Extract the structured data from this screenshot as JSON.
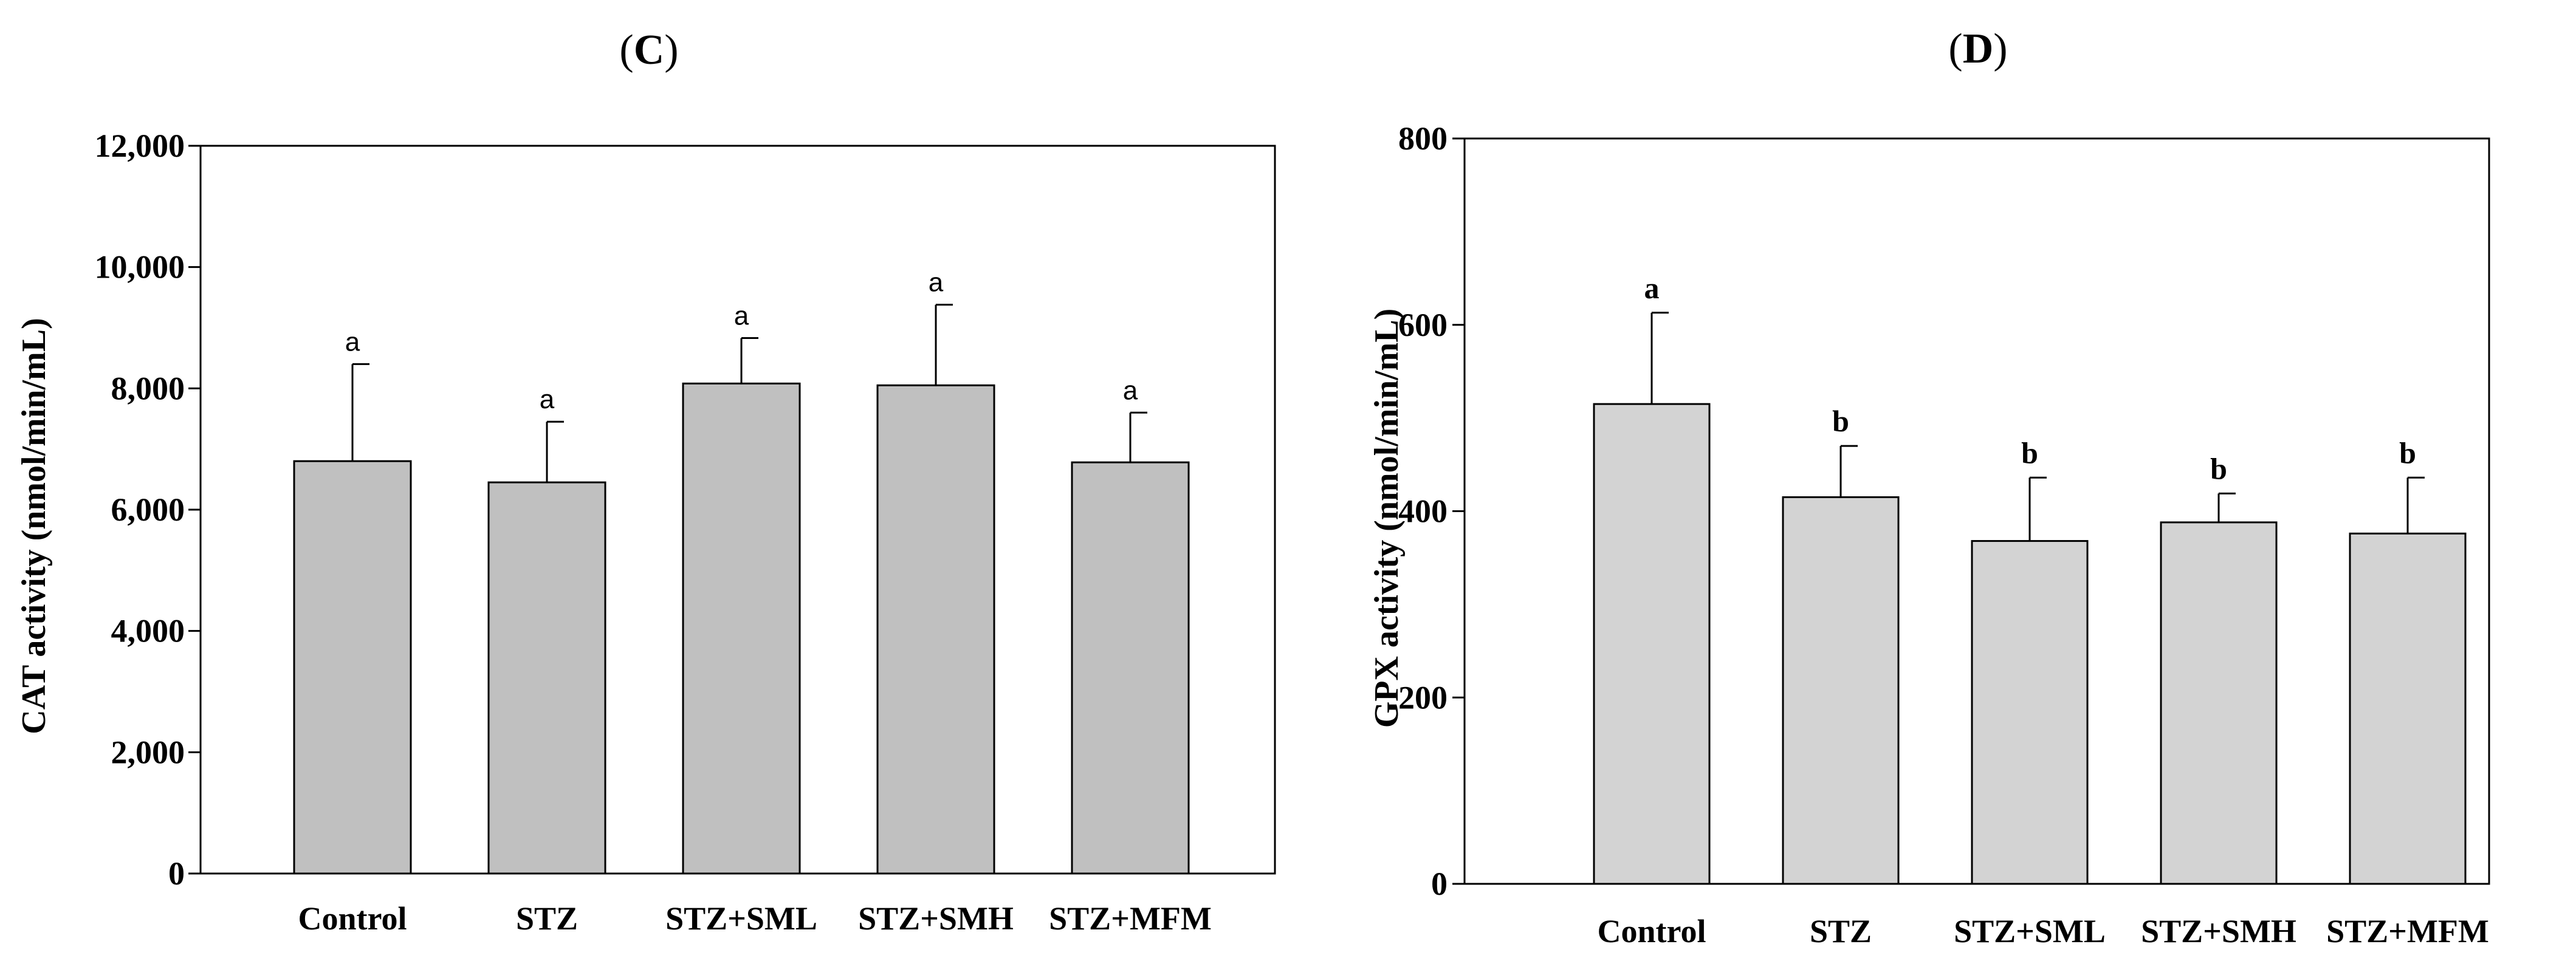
{
  "chart_data": [
    {
      "type": "bar",
      "panel_label": "(C)",
      "title_paren_open": "(",
      "title_letter": "C",
      "title_paren_close": ")",
      "ylabel": "CAT activity (nmol/min/mL)",
      "xlabel": "",
      "ylim": [
        0,
        12000
      ],
      "yticks": [
        0,
        2000,
        4000,
        6000,
        8000,
        10000,
        12000
      ],
      "ytick_labels": [
        "0",
        "2,000",
        "4,000",
        "6,000",
        "8,000",
        "10,000",
        "12,000"
      ],
      "categories": [
        "Control",
        "STZ",
        "STZ+SML",
        "STZ+SMH",
        "STZ+MFM"
      ],
      "values": [
        6800,
        6450,
        8080,
        8050,
        6780
      ],
      "errors": [
        1600,
        1000,
        750,
        1330,
        820
      ],
      "significance_labels": [
        "a",
        "a",
        "a",
        "a",
        "a"
      ],
      "colors": {
        "bar_fill": "#c0c0c0",
        "bar_stroke": "#000000"
      }
    },
    {
      "type": "bar",
      "panel_label": "(D)",
      "title_paren_open": "(",
      "title_letter": "D",
      "title_paren_close": ")",
      "ylabel": "GPX activity (nmol/min/mL)",
      "xlabel": "",
      "ylim": [
        0,
        800
      ],
      "yticks": [
        0,
        200,
        400,
        600,
        800
      ],
      "ytick_labels": [
        "0",
        "200",
        "400",
        "600",
        "800"
      ],
      "categories": [
        "Control",
        "STZ",
        "STZ+SML",
        "STZ+SMH",
        "STZ+MFM"
      ],
      "values": [
        515,
        415,
        368,
        388,
        376
      ],
      "errors": [
        98,
        55,
        68,
        31,
        60
      ],
      "significance_labels": [
        "a",
        "b",
        "b",
        "b",
        "b"
      ],
      "colors": {
        "bar_fill": "#d3d3d3",
        "bar_stroke": "#000000"
      }
    }
  ]
}
